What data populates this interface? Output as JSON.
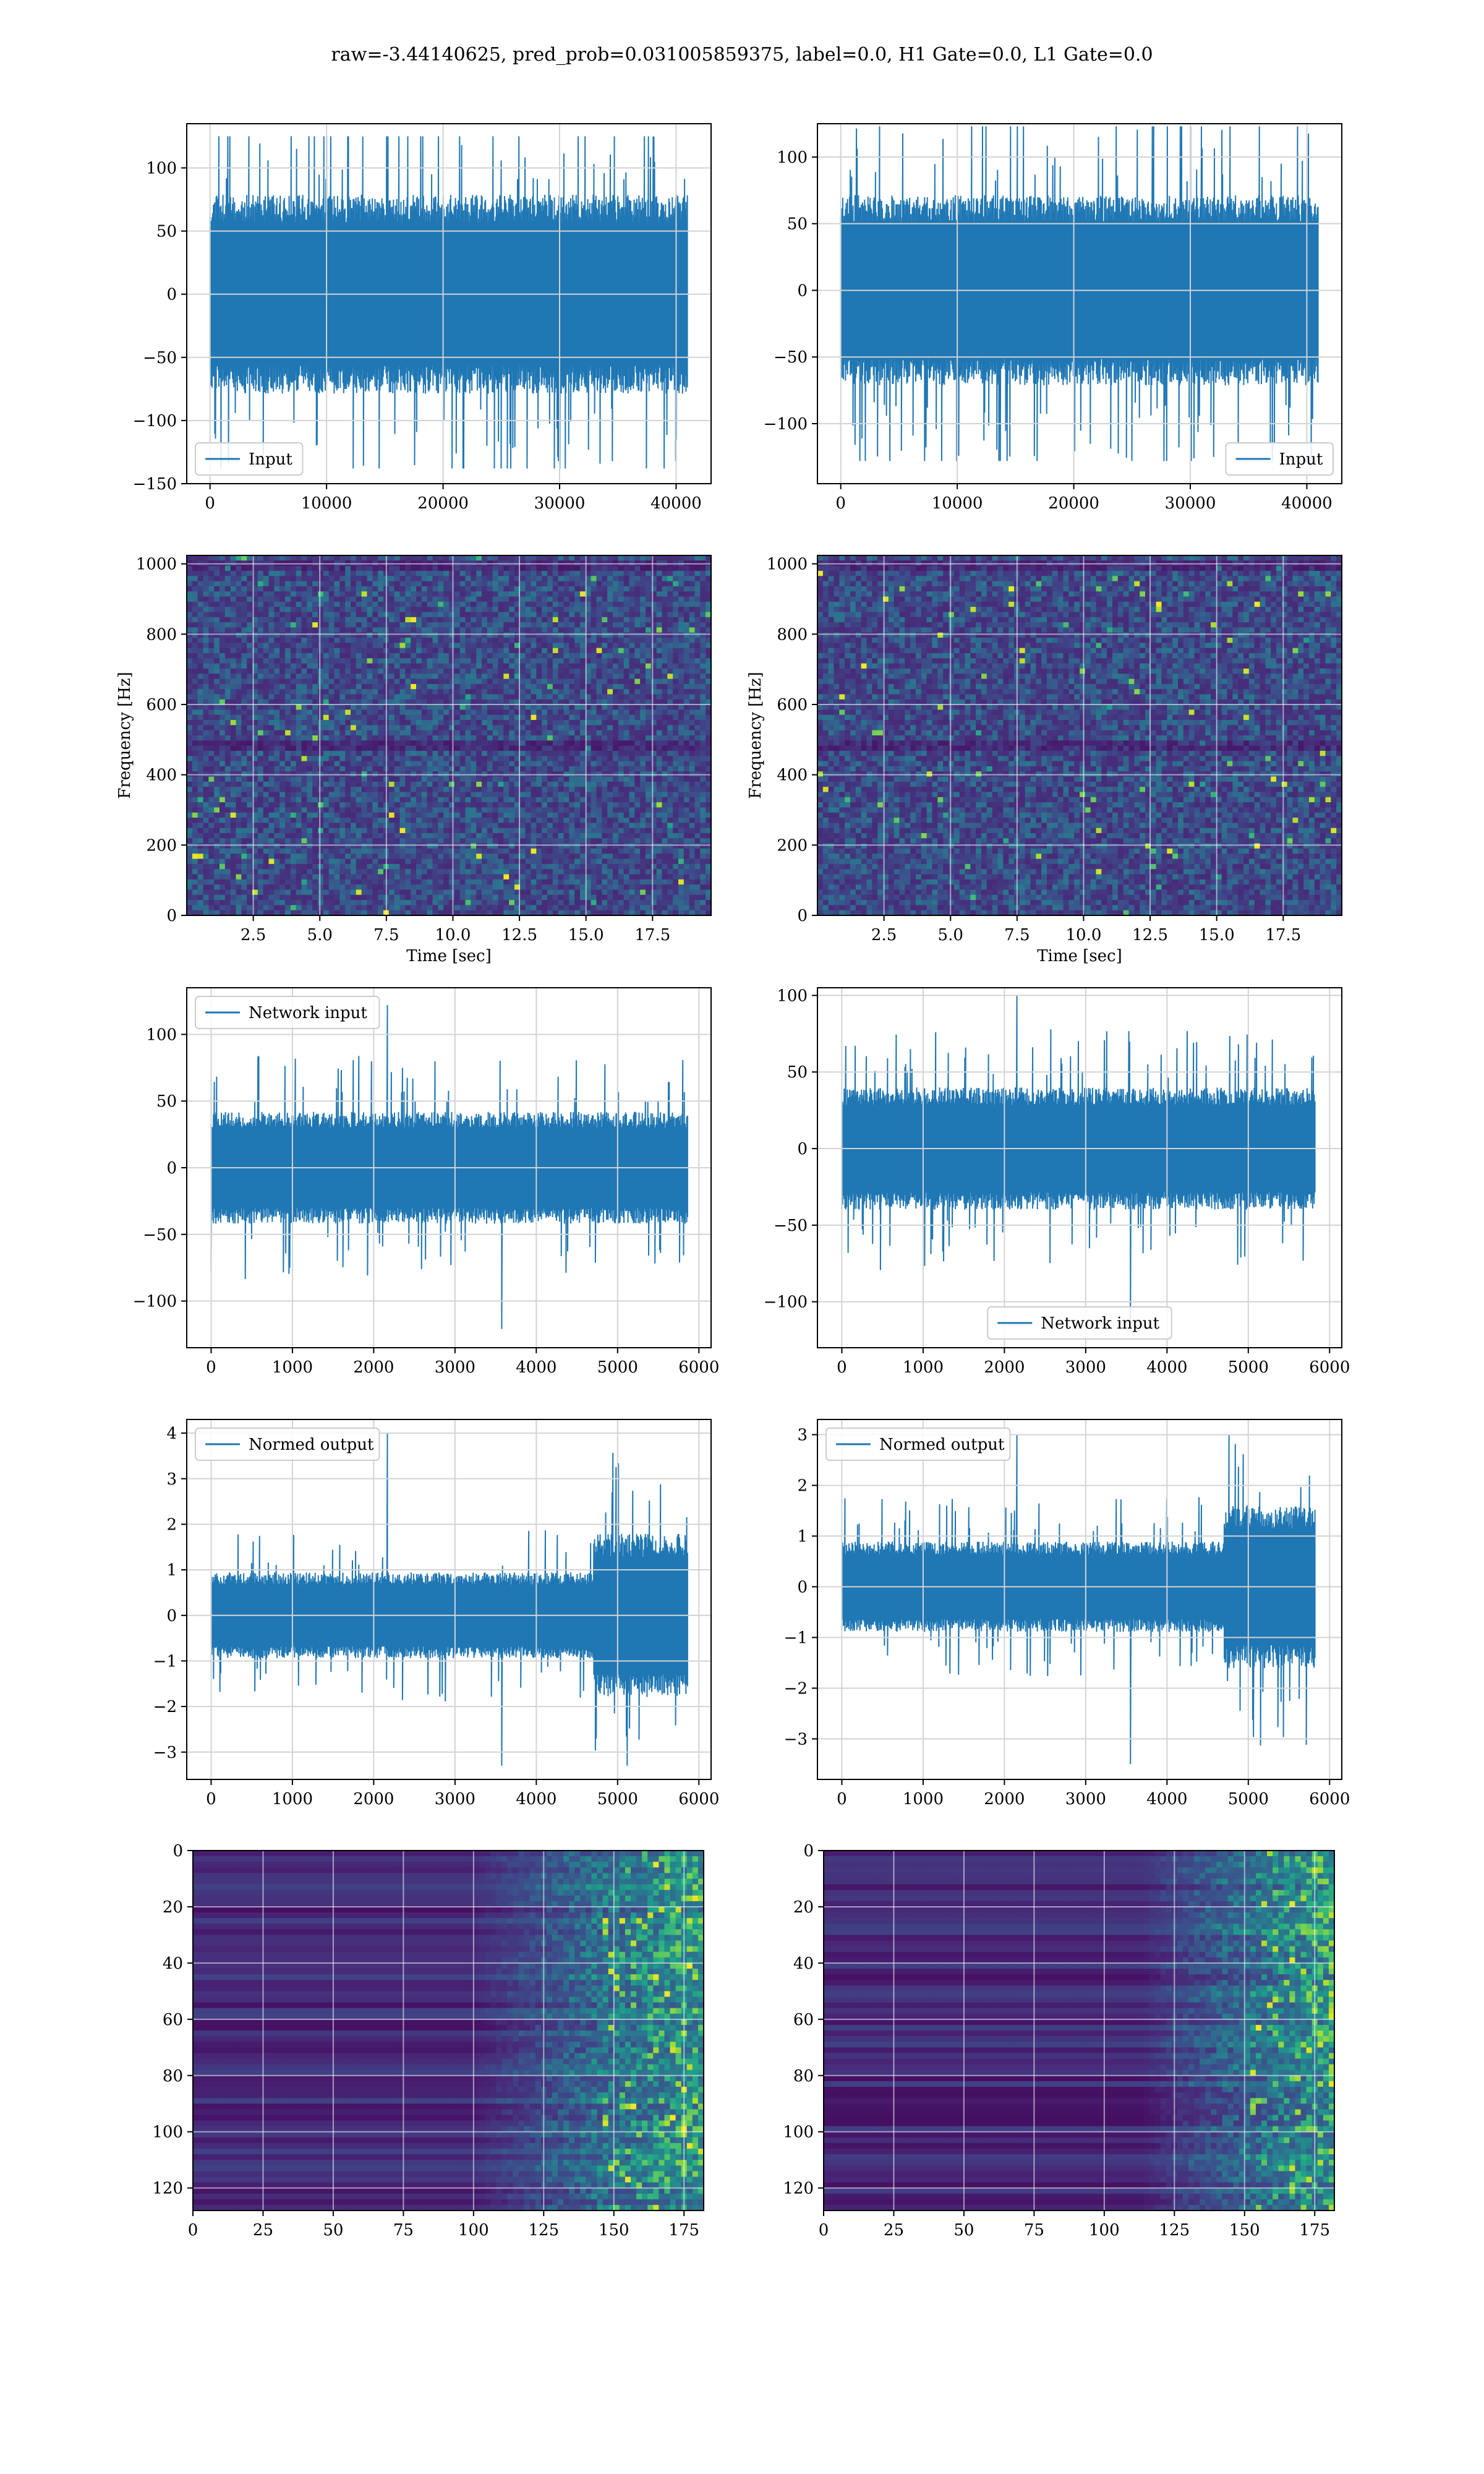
{
  "figure": {
    "suptitle": "raw=-3.44140625, pred_prob=0.031005859375, label=0.0, H1 Gate=0.0, L1 Gate=0.0"
  },
  "colors": {
    "line": "#1f77b4",
    "grid": "#d3d3d3",
    "axes": "#000000",
    "colormap": [
      "#440154",
      "#482878",
      "#3e4989",
      "#31688e",
      "#26828e",
      "#1f9e89",
      "#35b779",
      "#6ece58",
      "#b5de2b",
      "#fde725"
    ]
  },
  "chart_data": [
    {
      "name": "h1-input",
      "type": "line",
      "legend": [
        "Input"
      ],
      "legend_loc": "lower left",
      "xlim": [
        -2000,
        43000
      ],
      "ylim": [
        -150,
        135
      ],
      "xticks": [
        0,
        10000,
        20000,
        30000,
        40000
      ],
      "xticklabels": [
        "0",
        "10000",
        "20000",
        "30000",
        "40000"
      ],
      "yticks": [
        -150,
        -100,
        -50,
        0,
        50,
        100
      ],
      "yticklabels": [
        "−150",
        "−100",
        "−50",
        "0",
        "50",
        "100"
      ],
      "grid": true,
      "signal": {
        "x_start": 0,
        "x_end": 40960,
        "n_points": 700,
        "band": 75,
        "spike_max": 125,
        "spike_min": -138,
        "envelope": "flat",
        "seed": 11
      }
    },
    {
      "name": "l1-input",
      "type": "line",
      "legend": [
        "Input"
      ],
      "legend_loc": "lower right",
      "xlim": [
        -2000,
        43000
      ],
      "ylim": [
        -145,
        125
      ],
      "xticks": [
        0,
        10000,
        20000,
        30000,
        40000
      ],
      "xticklabels": [
        "0",
        "10000",
        "20000",
        "30000",
        "40000"
      ],
      "yticks": [
        -100,
        -50,
        0,
        50,
        100
      ],
      "yticklabels": [
        "−100",
        "−50",
        "0",
        "50",
        "100"
      ],
      "grid": true,
      "signal": {
        "x_start": 0,
        "x_end": 40960,
        "n_points": 700,
        "band": 68,
        "spike_max": 123,
        "spike_min": -128,
        "envelope": "flat",
        "seed": 23
      }
    },
    {
      "name": "h1-spectrogram",
      "type": "heatmap",
      "xlim": [
        0,
        19.7
      ],
      "ylim": [
        0,
        1024
      ],
      "xticks": [
        2.5,
        5.0,
        7.5,
        10.0,
        12.5,
        15.0,
        17.5
      ],
      "xticklabels": [
        "2.5",
        "5.0",
        "7.5",
        "10.0",
        "12.5",
        "15.0",
        "17.5"
      ],
      "yticks": [
        0,
        200,
        400,
        600,
        800,
        1000
      ],
      "yticklabels": [
        "0",
        "200",
        "400",
        "600",
        "800",
        "1000"
      ],
      "xlabel": "Time [sec]",
      "ylabel": "Frequency [Hz]",
      "grid": true,
      "cells": {
        "cols": 96,
        "rows": 70,
        "style": "noise",
        "seed": 5
      }
    },
    {
      "name": "l1-spectrogram",
      "type": "heatmap",
      "xlim": [
        0,
        19.7
      ],
      "ylim": [
        0,
        1024
      ],
      "xticks": [
        2.5,
        5.0,
        7.5,
        10.0,
        12.5,
        15.0,
        17.5
      ],
      "xticklabels": [
        "2.5",
        "5.0",
        "7.5",
        "10.0",
        "12.5",
        "15.0",
        "17.5"
      ],
      "yticks": [
        0,
        200,
        400,
        600,
        800,
        1000
      ],
      "yticklabels": [
        "0",
        "200",
        "400",
        "600",
        "800",
        "1000"
      ],
      "xlabel": "Time [sec]",
      "ylabel": "Frequency [Hz]",
      "grid": true,
      "cells": {
        "cols": 96,
        "rows": 70,
        "style": "noise",
        "seed": 9
      }
    },
    {
      "name": "h1-network-input",
      "type": "line",
      "legend": [
        "Network input"
      ],
      "legend_loc": "upper left",
      "xlim": [
        -300,
        6150
      ],
      "ylim": [
        -135,
        135
      ],
      "xticks": [
        0,
        1000,
        2000,
        3000,
        4000,
        5000,
        6000
      ],
      "xticklabels": [
        "0",
        "1000",
        "2000",
        "3000",
        "4000",
        "5000",
        "6000"
      ],
      "yticks": [
        -100,
        -50,
        0,
        50,
        100
      ],
      "yticklabels": [
        "−100",
        "−50",
        "0",
        "50",
        "100"
      ],
      "grid": true,
      "signal": {
        "x_start": 0,
        "x_end": 5860,
        "n_points": 600,
        "band": 40,
        "spike_max": 122,
        "spike_min": -121,
        "envelope": "flat",
        "seed": 31
      }
    },
    {
      "name": "l1-network-input",
      "type": "line",
      "legend": [
        "Network input"
      ],
      "legend_loc": "lower center",
      "xlim": [
        -300,
        6150
      ],
      "ylim": [
        -130,
        105
      ],
      "xticks": [
        0,
        1000,
        2000,
        3000,
        4000,
        5000,
        6000
      ],
      "xticklabels": [
        "0",
        "1000",
        "2000",
        "3000",
        "4000",
        "5000",
        "6000"
      ],
      "yticks": [
        -100,
        -50,
        0,
        50,
        100
      ],
      "yticklabels": [
        "−100",
        "−50",
        "0",
        "50",
        "100"
      ],
      "grid": true,
      "signal": {
        "x_start": 0,
        "x_end": 5820,
        "n_points": 600,
        "band": 38,
        "spike_max": 100,
        "spike_min": -113,
        "envelope": "flat",
        "seed": 41
      }
    },
    {
      "name": "h1-normed-output",
      "type": "line",
      "legend": [
        "Normed output"
      ],
      "legend_loc": "upper left",
      "xlim": [
        -300,
        6150
      ],
      "ylim": [
        -3.6,
        4.3
      ],
      "xticks": [
        0,
        1000,
        2000,
        3000,
        4000,
        5000,
        6000
      ],
      "xticklabels": [
        "0",
        "1000",
        "2000",
        "3000",
        "4000",
        "5000",
        "6000"
      ],
      "yticks": [
        -3,
        -2,
        -1,
        0,
        1,
        2,
        3,
        4
      ],
      "yticklabels": [
        "−3",
        "−2",
        "−1",
        "0",
        "1",
        "2",
        "3",
        "4"
      ],
      "grid": true,
      "signal": {
        "x_start": 0,
        "x_end": 5860,
        "n_points": 600,
        "band": 0.9,
        "spike_max": 4.0,
        "spike_min": -3.3,
        "envelope": "late-burst",
        "burst_start": 4700,
        "burst_gain": 1.9,
        "seed": 53
      }
    },
    {
      "name": "l1-normed-output",
      "type": "line",
      "legend": [
        "Normed output"
      ],
      "legend_loc": "upper left",
      "xlim": [
        -300,
        6150
      ],
      "ylim": [
        -3.8,
        3.3
      ],
      "xticks": [
        0,
        1000,
        2000,
        3000,
        4000,
        5000,
        6000
      ],
      "xticklabels": [
        "0",
        "1000",
        "2000",
        "3000",
        "4000",
        "5000",
        "6000"
      ],
      "yticks": [
        -3,
        -2,
        -1,
        0,
        1,
        2,
        3
      ],
      "yticklabels": [
        "−3",
        "−2",
        "−1",
        "0",
        "1",
        "2",
        "3"
      ],
      "grid": true,
      "signal": {
        "x_start": 0,
        "x_end": 5820,
        "n_points": 600,
        "band": 0.85,
        "spike_max": 3.0,
        "spike_min": -3.5,
        "envelope": "late-burst",
        "burst_start": 4700,
        "burst_gain": 1.8,
        "seed": 61
      }
    },
    {
      "name": "h1-feature-map",
      "type": "heatmap",
      "xlim": [
        0,
        182
      ],
      "ylim": [
        128,
        0
      ],
      "xticks": [
        0,
        25,
        50,
        75,
        100,
        125,
        150,
        175
      ],
      "xticklabels": [
        "0",
        "25",
        "50",
        "75",
        "100",
        "125",
        "150",
        "175"
      ],
      "yticks": [
        0,
        20,
        40,
        60,
        80,
        100,
        120
      ],
      "yticklabels": [
        "0",
        "20",
        "40",
        "60",
        "80",
        "100",
        "120"
      ],
      "grid": true,
      "cells": {
        "cols": 91,
        "rows": 64,
        "style": "rows-ramp",
        "ramp_start": 0.55,
        "seed": 71
      }
    },
    {
      "name": "l1-feature-map",
      "type": "heatmap",
      "xlim": [
        0,
        182
      ],
      "ylim": [
        128,
        0
      ],
      "xticks": [
        0,
        25,
        50,
        75,
        100,
        125,
        150,
        175
      ],
      "xticklabels": [
        "0",
        "25",
        "50",
        "75",
        "100",
        "125",
        "150",
        "175"
      ],
      "yticks": [
        0,
        20,
        40,
        60,
        80,
        100,
        120
      ],
      "yticklabels": [
        "0",
        "20",
        "40",
        "60",
        "80",
        "100",
        "120"
      ],
      "grid": true,
      "cells": {
        "cols": 91,
        "rows": 64,
        "style": "rows-ramp",
        "ramp_start": 0.62,
        "seed": 83
      }
    }
  ]
}
